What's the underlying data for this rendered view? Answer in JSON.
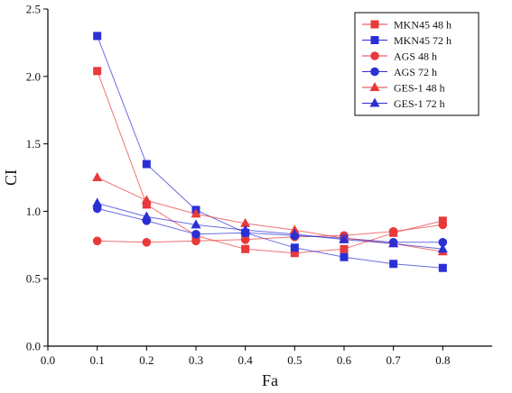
{
  "chart_data": {
    "type": "line",
    "xlabel": "Fa",
    "ylabel": "CI",
    "xlim": [
      0.0,
      0.9
    ],
    "ylim": [
      0.0,
      2.5
    ],
    "xticks": [
      "0.0",
      "0.1",
      "0.2",
      "0.3",
      "0.4",
      "0.5",
      "0.6",
      "0.7",
      "0.8"
    ],
    "yticks": [
      "0.0",
      "0.5",
      "1.0",
      "1.5",
      "2.0",
      "2.5"
    ],
    "x": [
      0.1,
      0.2,
      0.3,
      0.4,
      0.5,
      0.6,
      0.7,
      0.8
    ],
    "grid": false,
    "legend_position": "top-right",
    "series": [
      {
        "name": "MKN45 48 h",
        "color": "#e8393b",
        "marker": "square",
        "values": [
          2.04,
          1.05,
          0.82,
          0.72,
          0.69,
          0.72,
          0.84,
          0.93
        ]
      },
      {
        "name": "MKN45 72 h",
        "color": "#2b2fd6",
        "marker": "square",
        "values": [
          2.3,
          1.35,
          1.01,
          0.84,
          0.73,
          0.66,
          0.61,
          0.58
        ]
      },
      {
        "name": "AGS 48 h",
        "color": "#e8393b",
        "marker": "circle",
        "values": [
          0.78,
          0.77,
          0.78,
          0.79,
          0.81,
          0.82,
          0.85,
          0.9
        ]
      },
      {
        "name": "AGS 72 h",
        "color": "#2b2fd6",
        "marker": "circle",
        "values": [
          1.02,
          0.93,
          0.83,
          0.84,
          0.82,
          0.8,
          0.77,
          0.77
        ]
      },
      {
        "name": "GES-1 48 h",
        "color": "#e8393b",
        "marker": "triangle",
        "values": [
          1.25,
          1.08,
          0.98,
          0.91,
          0.86,
          0.8,
          0.76,
          0.7
        ]
      },
      {
        "name": "GES-1 72 h",
        "color": "#2b2fd6",
        "marker": "triangle",
        "values": [
          1.06,
          0.96,
          0.9,
          0.86,
          0.83,
          0.79,
          0.76,
          0.72
        ]
      }
    ]
  }
}
